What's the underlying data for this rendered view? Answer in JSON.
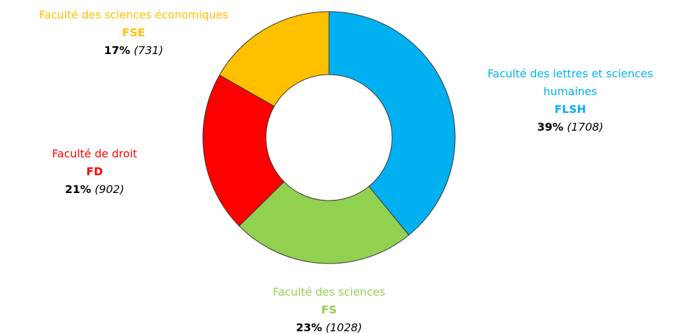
{
  "chart_data": {
    "type": "donut",
    "series": [
      {
        "name": "Faculté des lettres et sciences humaines",
        "code": "FLSH",
        "color": "#00b0f0"
      },
      {
        "name": "Faculté des sciences",
        "code": "FS",
        "color": "#92d050"
      },
      {
        "name": "Faculté de droit",
        "code": "FD",
        "color": "#ff0000"
      },
      {
        "name": "Faculté des sciences économiques",
        "code": "FSE",
        "color": "#ffc000"
      }
    ],
    "values": [
      1708,
      1028,
      902,
      731
    ],
    "value_labels": [
      "(1708)",
      "(1028)",
      "(902)",
      "(731)"
    ],
    "percent_labels": [
      "39%",
      "23%",
      "21%",
      "17%"
    ]
  }
}
